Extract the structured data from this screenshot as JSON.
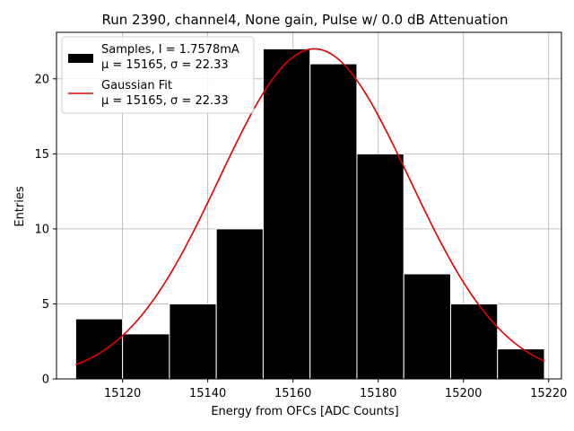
{
  "chart_data": {
    "type": "bar",
    "title": "Run 2390, channel4, None gain, Pulse w/ 0.0 dB Attenuation",
    "xlabel": "Energy from OFCs [ADC Counts]",
    "ylabel": "Entries",
    "xlim": [
      15104.5,
      15223.0
    ],
    "ylim": [
      0,
      23.1
    ],
    "xticks": [
      15120,
      15140,
      15160,
      15180,
      15200,
      15220
    ],
    "yticks": [
      0,
      5,
      10,
      15,
      20
    ],
    "grid": true,
    "legend_position": "top-left",
    "histogram": {
      "name": "Samples, I = 1.7578mA",
      "stats_label": "μ = 15165, σ = 22.33",
      "color": "#000000",
      "edgecolor": "#ffffff",
      "bin_edges": [
        15109.0,
        15120.0,
        15131.0,
        15142.0,
        15153.0,
        15164.0,
        15175.0,
        15186.0,
        15197.0,
        15208.0,
        15219.0
      ],
      "counts": [
        4,
        3,
        5,
        10,
        22,
        21,
        15,
        7,
        5,
        2
      ]
    },
    "fit": {
      "name": "Gaussian Fit",
      "stats_label": "μ = 15165, σ = 22.33",
      "color": "#e00000",
      "type": "gaussian",
      "mu": 15165,
      "sigma": 22.33,
      "amplitude": 22.0,
      "x_range": [
        15109.0,
        15219.0
      ]
    }
  }
}
